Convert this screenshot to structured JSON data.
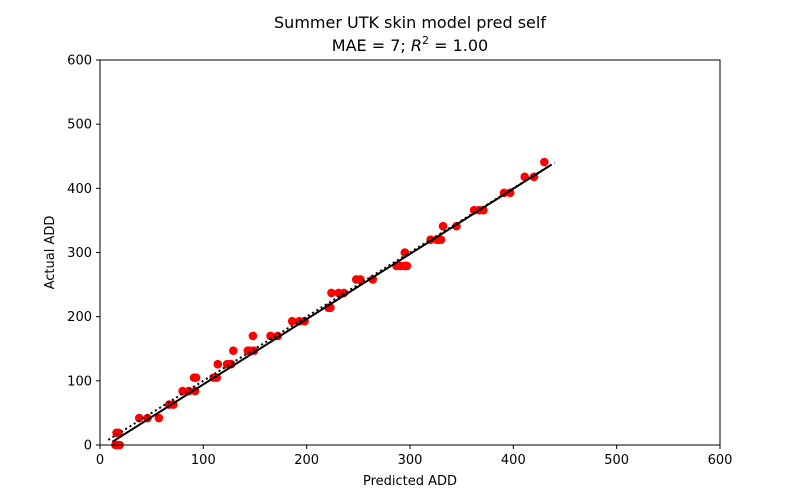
{
  "chart_data": {
    "type": "scatter",
    "title_line1": "Summer UTK skin model pred self",
    "title_line2_prefix": "MAE = 7; ",
    "title_line2_r": "R",
    "title_line2_sup": "2",
    "title_line2_suffix": " = 1.00",
    "xlabel": "Predicted ADD",
    "ylabel": "Actual ADD",
    "xlim": [
      0,
      600
    ],
    "ylim": [
      0,
      600
    ],
    "xticks": [
      0,
      100,
      200,
      300,
      400,
      500,
      600
    ],
    "yticks": [
      0,
      100,
      200,
      300,
      400,
      500,
      600
    ],
    "grid": false,
    "point_color": "#ff0000",
    "fit_line_color": "#000000",
    "identity_line_color": "#000000",
    "fit_line": {
      "x": [
        12,
        436
      ],
      "y": [
        5,
        436
      ]
    },
    "identity_line": {
      "x": [
        8,
        440
      ],
      "y": [
        8,
        440
      ],
      "style": "dotted"
    },
    "series": [
      {
        "x": [
          15,
          16,
          17,
          19,
          16,
          18,
          38,
          46,
          57,
          67,
          71,
          80,
          86,
          92,
          93,
          91,
          110,
          113,
          114,
          123,
          125,
          127,
          129,
          143,
          145,
          149,
          148,
          165,
          172,
          186,
          193,
          198,
          221,
          223,
          224,
          231,
          236,
          248,
          252,
          264,
          287,
          291,
          295,
          297,
          295,
          320,
          326,
          328,
          330,
          332,
          345,
          362,
          367,
          371,
          391,
          397,
          411,
          420,
          430
        ],
        "y": [
          0,
          0,
          0,
          0,
          19,
          19,
          42,
          42,
          42,
          63,
          63,
          84,
          84,
          84,
          105,
          105,
          105,
          105,
          126,
          126,
          126,
          126,
          147,
          147,
          147,
          147,
          170,
          170,
          170,
          193,
          193,
          193,
          214,
          214,
          237,
          237,
          237,
          258,
          258,
          258,
          279,
          279,
          279,
          279,
          300,
          320,
          320,
          320,
          320,
          341,
          341,
          366,
          366,
          366,
          393,
          393,
          418,
          418,
          441
        ]
      }
    ]
  }
}
